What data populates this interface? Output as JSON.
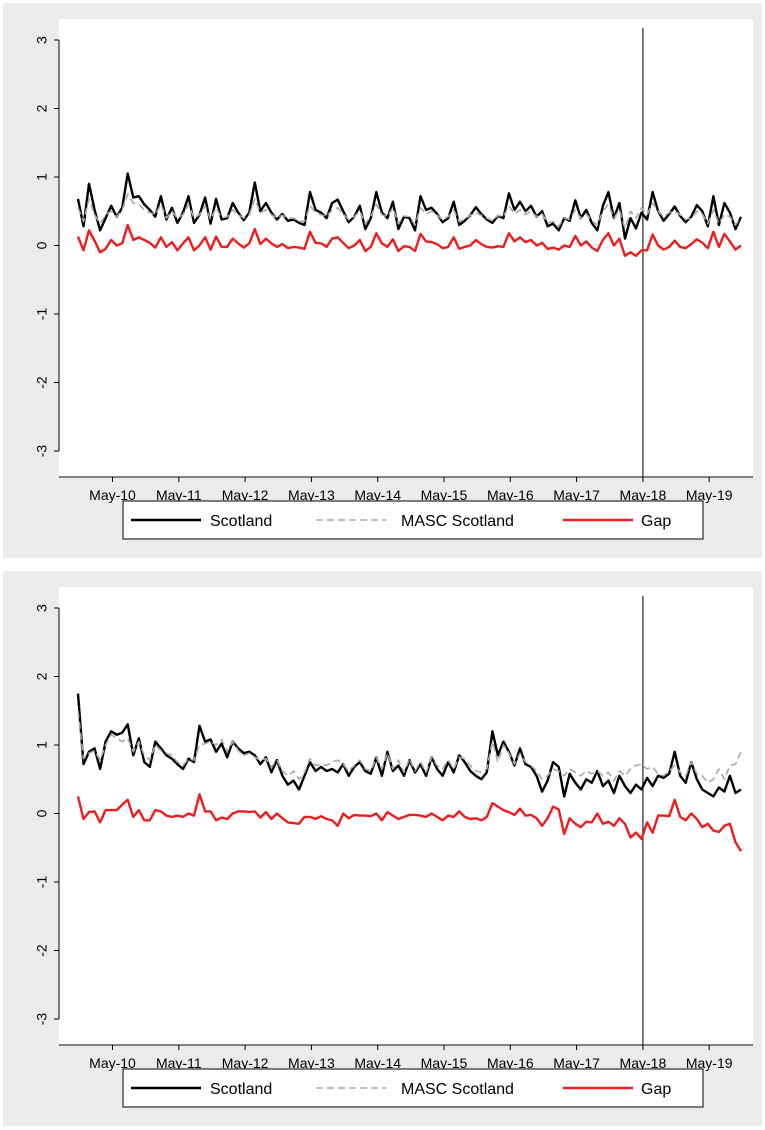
{
  "chart_data": [
    {
      "type": "line",
      "title": "",
      "xlabel": "",
      "ylabel": "",
      "x_ticks": [
        "May-10",
        "May-11",
        "May-12",
        "May-13",
        "May-14",
        "May-15",
        "May-16",
        "May-17",
        "May-18",
        "May-19"
      ],
      "xlim": [
        0,
        10.24
      ],
      "ylim": [
        -3,
        3
      ],
      "y_ticks": [
        "3",
        "2",
        "1",
        "0",
        "-1",
        "-2",
        "-3"
      ],
      "vline_at": "May-18",
      "legend_position": "bottom",
      "series": [
        {
          "name": "Scotland",
          "color": "#000000",
          "style": "solid",
          "values": [
            0.68,
            0.28,
            0.9,
            0.52,
            0.22,
            0.4,
            0.58,
            0.42,
            0.55,
            1.05,
            0.7,
            0.72,
            0.6,
            0.52,
            0.42,
            0.72,
            0.38,
            0.55,
            0.33,
            0.48,
            0.72,
            0.33,
            0.45,
            0.7,
            0.32,
            0.68,
            0.38,
            0.4,
            0.62,
            0.48,
            0.37,
            0.48,
            0.92,
            0.5,
            0.62,
            0.48,
            0.38,
            0.46,
            0.36,
            0.38,
            0.33,
            0.3,
            0.78,
            0.52,
            0.48,
            0.4,
            0.62,
            0.67,
            0.5,
            0.34,
            0.42,
            0.58,
            0.24,
            0.4,
            0.78,
            0.48,
            0.4,
            0.64,
            0.24,
            0.42,
            0.4,
            0.22,
            0.72,
            0.52,
            0.55,
            0.46,
            0.34,
            0.4,
            0.64,
            0.3,
            0.36,
            0.44,
            0.56,
            0.46,
            0.38,
            0.33,
            0.43,
            0.4,
            0.76,
            0.52,
            0.64,
            0.5,
            0.58,
            0.42,
            0.5,
            0.28,
            0.32,
            0.22,
            0.4,
            0.36,
            0.66,
            0.4,
            0.52,
            0.33,
            0.22,
            0.58,
            0.78,
            0.4,
            0.62,
            0.1,
            0.4,
            0.25,
            0.48,
            0.38,
            0.78,
            0.5,
            0.36,
            0.46,
            0.57,
            0.43,
            0.34,
            0.42,
            0.59,
            0.5,
            0.28,
            0.72,
            0.3,
            0.62,
            0.48,
            0.24,
            0.42
          ]
        },
        {
          "name": "MASC Scotland",
          "color": "#a8a8a8",
          "style": "dashed",
          "values": [
            0.55,
            0.35,
            0.68,
            0.45,
            0.32,
            0.45,
            0.5,
            0.42,
            0.52,
            0.75,
            0.62,
            0.6,
            0.52,
            0.48,
            0.45,
            0.6,
            0.4,
            0.5,
            0.4,
            0.45,
            0.6,
            0.4,
            0.45,
            0.58,
            0.38,
            0.55,
            0.4,
            0.42,
            0.52,
            0.45,
            0.4,
            0.45,
            0.68,
            0.48,
            0.52,
            0.45,
            0.4,
            0.44,
            0.4,
            0.4,
            0.36,
            0.35,
            0.58,
            0.48,
            0.45,
            0.42,
            0.52,
            0.55,
            0.46,
            0.38,
            0.42,
            0.5,
            0.32,
            0.42,
            0.6,
            0.45,
            0.42,
            0.55,
            0.32,
            0.43,
            0.42,
            0.3,
            0.55,
            0.46,
            0.5,
            0.44,
            0.38,
            0.42,
            0.52,
            0.35,
            0.38,
            0.44,
            0.48,
            0.44,
            0.4,
            0.36,
            0.44,
            0.42,
            0.58,
            0.46,
            0.52,
            0.45,
            0.5,
            0.42,
            0.46,
            0.33,
            0.35,
            0.28,
            0.4,
            0.38,
            0.52,
            0.4,
            0.46,
            0.36,
            0.3,
            0.5,
            0.6,
            0.4,
            0.52,
            0.25,
            0.5,
            0.4,
            0.55,
            0.45,
            0.62,
            0.5,
            0.42,
            0.48,
            0.5,
            0.45,
            0.38,
            0.4,
            0.5,
            0.46,
            0.32,
            0.52,
            0.32,
            0.45,
            0.42,
            0.3,
            0.42
          ]
        },
        {
          "name": "Gap",
          "color": "#ee1c1c",
          "style": "solid",
          "values": [
            0.13,
            -0.07,
            0.22,
            0.07,
            -0.1,
            -0.05,
            0.08,
            0.0,
            0.03,
            0.3,
            0.08,
            0.12,
            0.08,
            0.04,
            -0.03,
            0.12,
            -0.02,
            0.05,
            -0.07,
            0.03,
            0.12,
            -0.07,
            0.0,
            0.12,
            -0.06,
            0.13,
            -0.02,
            -0.02,
            0.1,
            0.03,
            -0.03,
            0.03,
            0.24,
            0.02,
            0.1,
            0.03,
            -0.02,
            0.02,
            -0.04,
            -0.02,
            -0.03,
            -0.05,
            0.2,
            0.04,
            0.03,
            -0.02,
            0.1,
            0.12,
            0.04,
            -0.04,
            0.0,
            0.08,
            -0.08,
            -0.02,
            0.18,
            0.03,
            -0.02,
            0.09,
            -0.08,
            -0.01,
            -0.02,
            -0.08,
            0.17,
            0.06,
            0.05,
            0.02,
            -0.04,
            -0.02,
            0.12,
            -0.05,
            -0.02,
            0.0,
            0.08,
            0.02,
            -0.02,
            -0.03,
            -0.01,
            -0.02,
            0.18,
            0.06,
            0.12,
            0.05,
            0.08,
            0.0,
            0.04,
            -0.05,
            -0.03,
            -0.06,
            0.0,
            -0.02,
            0.14,
            0.0,
            0.06,
            -0.03,
            -0.08,
            0.08,
            0.18,
            0.0,
            0.1,
            -0.15,
            -0.1,
            -0.15,
            -0.07,
            -0.07,
            0.16,
            0.0,
            -0.06,
            -0.02,
            0.07,
            -0.02,
            -0.04,
            0.02,
            0.09,
            0.04,
            -0.04,
            0.2,
            -0.02,
            0.17,
            0.06,
            -0.06,
            0.0
          ]
        }
      ]
    },
    {
      "type": "line",
      "title": "",
      "xlabel": "",
      "ylabel": "",
      "x_ticks": [
        "May-10",
        "May-11",
        "May-12",
        "May-13",
        "May-14",
        "May-15",
        "May-16",
        "May-17",
        "May-18",
        "May-19"
      ],
      "xlim": [
        0,
        10.24
      ],
      "ylim": [
        -3,
        3
      ],
      "y_ticks": [
        "3",
        "2",
        "1",
        "0",
        "-1",
        "-2",
        "-3"
      ],
      "vline_at": "May-18",
      "legend_position": "bottom",
      "series": [
        {
          "name": "Scotland",
          "color": "#000000",
          "style": "solid",
          "values": [
            1.75,
            0.72,
            0.9,
            0.95,
            0.65,
            1.05,
            1.2,
            1.15,
            1.18,
            1.3,
            0.85,
            1.1,
            0.75,
            0.68,
            1.05,
            0.95,
            0.85,
            0.8,
            0.72,
            0.65,
            0.8,
            0.75,
            1.28,
            1.05,
            1.08,
            0.9,
            1.02,
            0.82,
            1.05,
            0.95,
            0.88,
            0.9,
            0.85,
            0.72,
            0.82,
            0.6,
            0.78,
            0.55,
            0.42,
            0.48,
            0.35,
            0.55,
            0.75,
            0.62,
            0.68,
            0.62,
            0.65,
            0.6,
            0.72,
            0.55,
            0.68,
            0.75,
            0.62,
            0.58,
            0.82,
            0.55,
            0.9,
            0.62,
            0.7,
            0.55,
            0.78,
            0.6,
            0.72,
            0.55,
            0.82,
            0.65,
            0.55,
            0.75,
            0.6,
            0.85,
            0.75,
            0.62,
            0.55,
            0.5,
            0.6,
            1.2,
            0.85,
            1.05,
            0.9,
            0.7,
            0.95,
            0.72,
            0.68,
            0.55,
            0.32,
            0.48,
            0.75,
            0.68,
            0.25,
            0.58,
            0.45,
            0.35,
            0.5,
            0.45,
            0.62,
            0.4,
            0.48,
            0.3,
            0.55,
            0.4,
            0.3,
            0.42,
            0.35,
            0.52,
            0.4,
            0.55,
            0.52,
            0.58,
            0.9,
            0.55,
            0.45,
            0.75,
            0.5,
            0.35,
            0.3,
            0.25,
            0.38,
            0.32,
            0.55,
            0.3,
            0.35
          ]
        },
        {
          "name": "MASC Scotland",
          "color": "#a8a8a8",
          "style": "dashed",
          "values": [
            1.5,
            0.8,
            0.88,
            0.92,
            0.78,
            1.0,
            1.15,
            1.1,
            1.05,
            1.1,
            0.9,
            1.05,
            0.85,
            0.78,
            1.0,
            0.92,
            0.88,
            0.85,
            0.75,
            0.7,
            0.8,
            0.78,
            1.0,
            1.02,
            1.05,
            1.0,
            1.08,
            0.9,
            1.05,
            0.92,
            0.85,
            0.88,
            0.82,
            0.78,
            0.8,
            0.68,
            0.78,
            0.62,
            0.55,
            0.62,
            0.5,
            0.6,
            0.8,
            0.7,
            0.72,
            0.7,
            0.75,
            0.78,
            0.72,
            0.62,
            0.7,
            0.78,
            0.65,
            0.62,
            0.82,
            0.65,
            0.88,
            0.65,
            0.78,
            0.6,
            0.8,
            0.62,
            0.75,
            0.6,
            0.82,
            0.7,
            0.65,
            0.78,
            0.65,
            0.82,
            0.8,
            0.7,
            0.62,
            0.6,
            0.65,
            1.05,
            0.75,
            1.0,
            0.88,
            0.72,
            0.88,
            0.75,
            0.7,
            0.62,
            0.5,
            0.55,
            0.65,
            0.62,
            0.55,
            0.65,
            0.6,
            0.55,
            0.62,
            0.58,
            0.62,
            0.55,
            0.6,
            0.48,
            0.62,
            0.55,
            0.65,
            0.7,
            0.72,
            0.65,
            0.68,
            0.58,
            0.55,
            0.62,
            0.7,
            0.6,
            0.55,
            0.75,
            0.58,
            0.55,
            0.45,
            0.5,
            0.65,
            0.5,
            0.7,
            0.72,
            0.9
          ]
        },
        {
          "name": "Gap",
          "color": "#ee1c1c",
          "style": "solid",
          "values": [
            0.25,
            -0.08,
            0.02,
            0.03,
            -0.13,
            0.05,
            0.05,
            0.05,
            0.13,
            0.2,
            -0.05,
            0.05,
            -0.1,
            -0.1,
            0.05,
            0.03,
            -0.03,
            -0.05,
            -0.03,
            -0.05,
            0.0,
            -0.03,
            0.28,
            0.03,
            0.03,
            -0.1,
            -0.06,
            -0.08,
            0.0,
            0.03,
            0.03,
            0.02,
            0.03,
            -0.06,
            0.02,
            -0.08,
            0.0,
            -0.07,
            -0.13,
            -0.14,
            -0.15,
            -0.05,
            -0.05,
            -0.08,
            -0.04,
            -0.08,
            -0.1,
            -0.18,
            0.0,
            -0.07,
            -0.02,
            -0.03,
            -0.03,
            -0.04,
            0.0,
            -0.1,
            0.02,
            -0.03,
            -0.08,
            -0.05,
            -0.02,
            -0.02,
            -0.03,
            -0.05,
            0.0,
            -0.05,
            -0.1,
            -0.03,
            -0.05,
            0.03,
            -0.05,
            -0.08,
            -0.07,
            -0.1,
            -0.05,
            0.15,
            0.1,
            0.05,
            0.02,
            -0.02,
            0.07,
            -0.03,
            -0.02,
            -0.07,
            -0.18,
            -0.07,
            0.1,
            0.06,
            -0.3,
            -0.07,
            -0.15,
            -0.2,
            -0.12,
            -0.13,
            -0.0,
            -0.15,
            -0.12,
            -0.18,
            -0.07,
            -0.15,
            -0.35,
            -0.28,
            -0.37,
            -0.13,
            -0.28,
            -0.03,
            -0.03,
            -0.04,
            0.2,
            -0.05,
            -0.1,
            -0.0,
            -0.08,
            -0.2,
            -0.15,
            -0.25,
            -0.27,
            -0.18,
            -0.15,
            -0.42,
            -0.55
          ]
        }
      ]
    }
  ]
}
